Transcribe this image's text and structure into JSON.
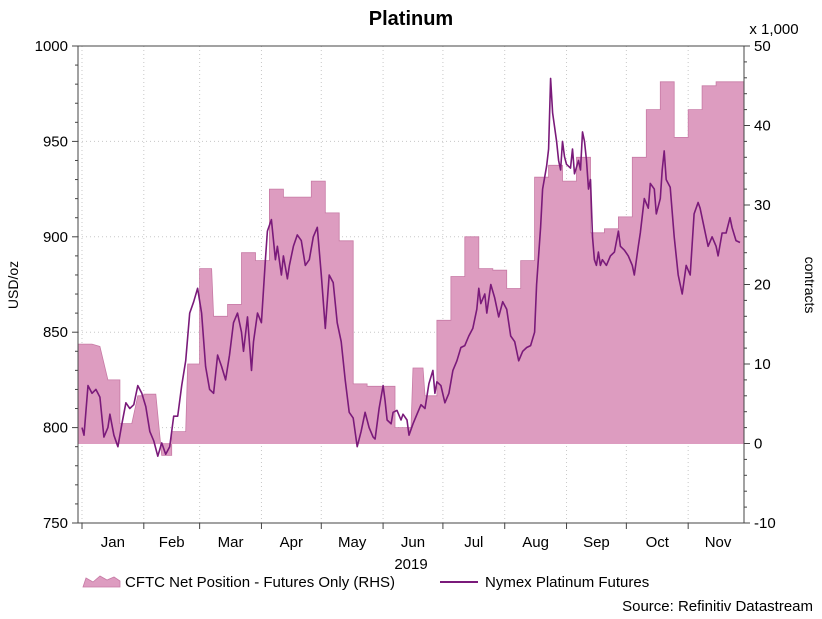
{
  "chart_data": {
    "type": "area",
    "title": "Platinum",
    "x_year_label": "2019",
    "x_month_labels": [
      "Jan",
      "Feb",
      "Mar",
      "Apr",
      "May",
      "Jun",
      "Jul",
      "Aug",
      "Sep",
      "Oct",
      "Nov"
    ],
    "y_left": {
      "label": "USD/oz",
      "ylim": [
        750,
        1000
      ],
      "ticks": [
        "750",
        "800",
        "850",
        "900",
        "950",
        "1000"
      ]
    },
    "y_right": {
      "label": "contracts",
      "multiplier": "x 1,000",
      "ylim": [
        -10,
        50
      ],
      "ticks": [
        "-10",
        "0",
        "10",
        "20",
        "30",
        "40",
        "50"
      ]
    },
    "x_range_days": [
      -2,
      332
    ],
    "legend": [
      "CFTC Net Position - Futures Only (RHS)",
      "Nymex Platinum Futures"
    ],
    "source": "Source: Refinitiv Datastream",
    "colors": {
      "area_fill": "#dd9cc0",
      "area_stroke": "#c77aa5",
      "line": "#7a1a7a",
      "grid": "#c8c8c8"
    },
    "series": [
      {
        "name": "CFTC Net Position - Futures Only (RHS)",
        "axis": "right",
        "style": "step-area",
        "points": [
          [
            -2,
            12.5
          ],
          [
            5,
            12.5
          ],
          [
            9,
            12.2
          ],
          [
            13,
            8
          ],
          [
            19,
            8
          ],
          [
            19,
            2.5
          ],
          [
            25,
            2.5
          ],
          [
            28,
            6
          ],
          [
            31,
            6
          ],
          [
            31,
            6.2
          ],
          [
            37,
            6.2
          ],
          [
            40,
            -1.5
          ],
          [
            45,
            -1.5
          ],
          [
            45,
            1.5
          ],
          [
            52,
            1.5
          ],
          [
            53,
            10
          ],
          [
            59,
            10
          ],
          [
            59,
            22
          ],
          [
            65,
            22
          ],
          [
            66,
            16
          ],
          [
            73,
            16
          ],
          [
            73,
            17.5
          ],
          [
            80,
            17.5
          ],
          [
            80,
            24
          ],
          [
            87,
            24
          ],
          [
            87,
            23
          ],
          [
            94,
            23
          ],
          [
            94,
            32
          ],
          [
            101,
            32
          ],
          [
            101,
            31
          ],
          [
            115,
            31
          ],
          [
            115,
            33
          ],
          [
            122,
            33
          ],
          [
            122,
            29
          ],
          [
            129,
            29
          ],
          [
            129,
            25.5
          ],
          [
            136,
            25.5
          ],
          [
            136,
            7.5
          ],
          [
            143,
            7.5
          ],
          [
            143,
            7.2
          ],
          [
            157,
            7.2
          ],
          [
            157,
            2
          ],
          [
            165,
            2
          ],
          [
            166,
            9.5
          ],
          [
            171,
            9.5
          ],
          [
            172,
            6
          ],
          [
            178,
            6
          ],
          [
            178,
            15.5
          ],
          [
            185,
            15.5
          ],
          [
            185,
            21
          ],
          [
            192,
            21
          ],
          [
            192,
            26
          ],
          [
            199,
            26
          ],
          [
            199,
            22
          ],
          [
            206,
            22
          ],
          [
            206,
            21.8
          ],
          [
            213,
            21.8
          ],
          [
            213,
            19.5
          ],
          [
            220,
            19.5
          ],
          [
            220,
            23
          ],
          [
            227,
            23
          ],
          [
            227,
            33.5
          ],
          [
            234,
            33.5
          ],
          [
            234,
            35
          ],
          [
            241,
            35
          ],
          [
            241,
            33
          ],
          [
            248,
            33
          ],
          [
            248,
            36
          ],
          [
            255,
            36
          ],
          [
            255,
            26.5
          ],
          [
            262,
            26.5
          ],
          [
            262,
            27
          ],
          [
            269,
            27
          ],
          [
            269,
            28.5
          ],
          [
            276,
            28.5
          ],
          [
            276,
            36
          ],
          [
            283,
            36
          ],
          [
            283,
            42
          ],
          [
            290,
            42
          ],
          [
            290,
            45.5
          ],
          [
            297,
            45.5
          ],
          [
            297,
            38.5
          ],
          [
            304,
            38.5
          ],
          [
            304,
            42
          ],
          [
            311,
            42
          ],
          [
            311,
            45
          ],
          [
            318,
            45
          ],
          [
            318,
            45.5
          ],
          [
            332,
            45.5
          ]
        ]
      },
      {
        "name": "Nymex Platinum Futures",
        "axis": "left",
        "style": "line",
        "points": [
          [
            0,
            800
          ],
          [
            1,
            796
          ],
          [
            3,
            822
          ],
          [
            5,
            818
          ],
          [
            7,
            820
          ],
          [
            9,
            816
          ],
          [
            11,
            795
          ],
          [
            13,
            800
          ],
          [
            14,
            807
          ],
          [
            16,
            796
          ],
          [
            18,
            790
          ],
          [
            20,
            802
          ],
          [
            22,
            813
          ],
          [
            24,
            810
          ],
          [
            26,
            812
          ],
          [
            28,
            822
          ],
          [
            30,
            818
          ],
          [
            32,
            811
          ],
          [
            34,
            798
          ],
          [
            36,
            793
          ],
          [
            38,
            785
          ],
          [
            40,
            792
          ],
          [
            42,
            786
          ],
          [
            44,
            790
          ],
          [
            46,
            806
          ],
          [
            48,
            806
          ],
          [
            50,
            822
          ],
          [
            52,
            835
          ],
          [
            54,
            860
          ],
          [
            56,
            866
          ],
          [
            58,
            873
          ],
          [
            60,
            860
          ],
          [
            62,
            832
          ],
          [
            64,
            820
          ],
          [
            66,
            818
          ],
          [
            68,
            838
          ],
          [
            70,
            832
          ],
          [
            72,
            825
          ],
          [
            74,
            838
          ],
          [
            76,
            855
          ],
          [
            78,
            860
          ],
          [
            80,
            850
          ],
          [
            81,
            840
          ],
          [
            83,
            858
          ],
          [
            85,
            830
          ],
          [
            86,
            845
          ],
          [
            88,
            860
          ],
          [
            90,
            855
          ],
          [
            92,
            888
          ],
          [
            93,
            903
          ],
          [
            95,
            909
          ],
          [
            97,
            888
          ],
          [
            98,
            895
          ],
          [
            100,
            880
          ],
          [
            101,
            890
          ],
          [
            103,
            878
          ],
          [
            104,
            885
          ],
          [
            106,
            895
          ],
          [
            108,
            901
          ],
          [
            110,
            898
          ],
          [
            112,
            885
          ],
          [
            114,
            888
          ],
          [
            116,
            900
          ],
          [
            118,
            905
          ],
          [
            120,
            880
          ],
          [
            122,
            852
          ],
          [
            124,
            880
          ],
          [
            126,
            876
          ],
          [
            128,
            855
          ],
          [
            130,
            845
          ],
          [
            132,
            825
          ],
          [
            134,
            808
          ],
          [
            136,
            805
          ],
          [
            138,
            790
          ],
          [
            140,
            798
          ],
          [
            142,
            808
          ],
          [
            144,
            800
          ],
          [
            146,
            795
          ],
          [
            147,
            794
          ],
          [
            149,
            810
          ],
          [
            151,
            822
          ],
          [
            152,
            814
          ],
          [
            153,
            804
          ],
          [
            155,
            802
          ],
          [
            156,
            808
          ],
          [
            158,
            809
          ],
          [
            160,
            804
          ],
          [
            161,
            807
          ],
          [
            163,
            804
          ],
          [
            164,
            796
          ],
          [
            166,
            802
          ],
          [
            168,
            807
          ],
          [
            170,
            812
          ],
          [
            172,
            810
          ],
          [
            174,
            823
          ],
          [
            176,
            830
          ],
          [
            177,
            818
          ],
          [
            178,
            824
          ],
          [
            180,
            822
          ],
          [
            182,
            813
          ],
          [
            184,
            818
          ],
          [
            186,
            830
          ],
          [
            188,
            835
          ],
          [
            190,
            842
          ],
          [
            192,
            843
          ],
          [
            194,
            848
          ],
          [
            196,
            852
          ],
          [
            198,
            862
          ],
          [
            199,
            873
          ],
          [
            200,
            865
          ],
          [
            202,
            870
          ],
          [
            203,
            860
          ],
          [
            205,
            875
          ],
          [
            207,
            868
          ],
          [
            209,
            858
          ],
          [
            211,
            866
          ],
          [
            213,
            862
          ],
          [
            215,
            848
          ],
          [
            217,
            845
          ],
          [
            219,
            835
          ],
          [
            221,
            840
          ],
          [
            223,
            842
          ],
          [
            225,
            843
          ],
          [
            227,
            850
          ],
          [
            228,
            875
          ],
          [
            230,
            905
          ],
          [
            231,
            925
          ],
          [
            233,
            937
          ],
          [
            234,
            946
          ],
          [
            235,
            983
          ],
          [
            236,
            965
          ],
          [
            238,
            950
          ],
          [
            239,
            940
          ],
          [
            240,
            935
          ],
          [
            241,
            950
          ],
          [
            242,
            942
          ],
          [
            243,
            938
          ],
          [
            245,
            936
          ],
          [
            246,
            946
          ],
          [
            247,
            933
          ],
          [
            249,
            940
          ],
          [
            250,
            935
          ],
          [
            251,
            955
          ],
          [
            252,
            950
          ],
          [
            253,
            940
          ],
          [
            254,
            925
          ],
          [
            255,
            930
          ],
          [
            256,
            900
          ],
          [
            257,
            888
          ],
          [
            258,
            885
          ],
          [
            259,
            892
          ],
          [
            260,
            885
          ],
          [
            261,
            888
          ],
          [
            263,
            885
          ],
          [
            265,
            890
          ],
          [
            267,
            892
          ],
          [
            269,
            903
          ],
          [
            270,
            895
          ],
          [
            272,
            893
          ],
          [
            274,
            890
          ],
          [
            276,
            885
          ],
          [
            277,
            880
          ],
          [
            279,
            895
          ],
          [
            280,
            902
          ],
          [
            282,
            920
          ],
          [
            284,
            915
          ],
          [
            285,
            928
          ],
          [
            287,
            925
          ],
          [
            288,
            912
          ],
          [
            290,
            920
          ],
          [
            291,
            935
          ],
          [
            292,
            945
          ],
          [
            293,
            930
          ],
          [
            295,
            926
          ],
          [
            297,
            900
          ],
          [
            299,
            880
          ],
          [
            301,
            870
          ],
          [
            303,
            885
          ],
          [
            305,
            880
          ],
          [
            307,
            912
          ],
          [
            309,
            918
          ],
          [
            310,
            915
          ],
          [
            312,
            905
          ],
          [
            314,
            895
          ],
          [
            316,
            900
          ],
          [
            318,
            895
          ],
          [
            319,
            890
          ],
          [
            321,
            902
          ],
          [
            323,
            902
          ],
          [
            325,
            910
          ],
          [
            326,
            905
          ],
          [
            328,
            898
          ],
          [
            330,
            897
          ]
        ]
      }
    ]
  }
}
